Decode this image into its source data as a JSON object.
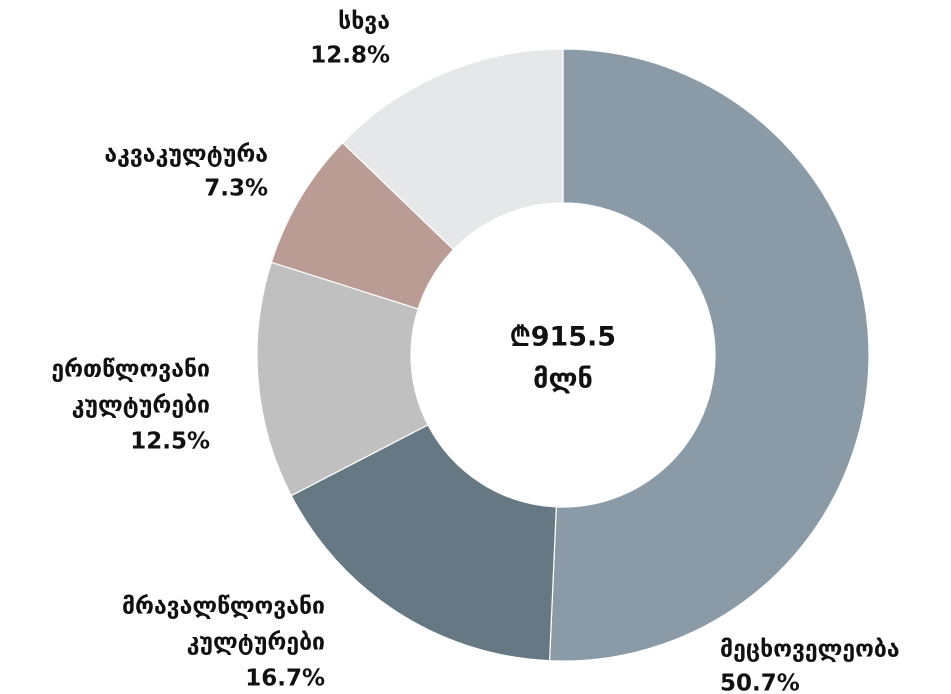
{
  "chart_data": {
    "type": "donut",
    "categories": [
      [
        "მეცხოველეობა"
      ],
      [
        "მრავალწლოვანი",
        "კულტურები"
      ],
      [
        "ერთწლოვანი",
        "კულტურები"
      ],
      [
        "აკვაკულტურა"
      ],
      [
        "სხვა"
      ]
    ],
    "values": [
      50.7,
      16.7,
      12.5,
      7.3,
      12.8
    ],
    "value_labels": [
      "50.7%",
      "16.7%",
      "12.5%",
      "7.3%",
      "12.8%"
    ],
    "colors": [
      "#8a9ba7",
      "#657884",
      "#c0c0c0",
      "#bb9c95",
      "#e6e7e9"
    ],
    "center_label": [
      "₾915.5",
      "მლნ"
    ]
  }
}
